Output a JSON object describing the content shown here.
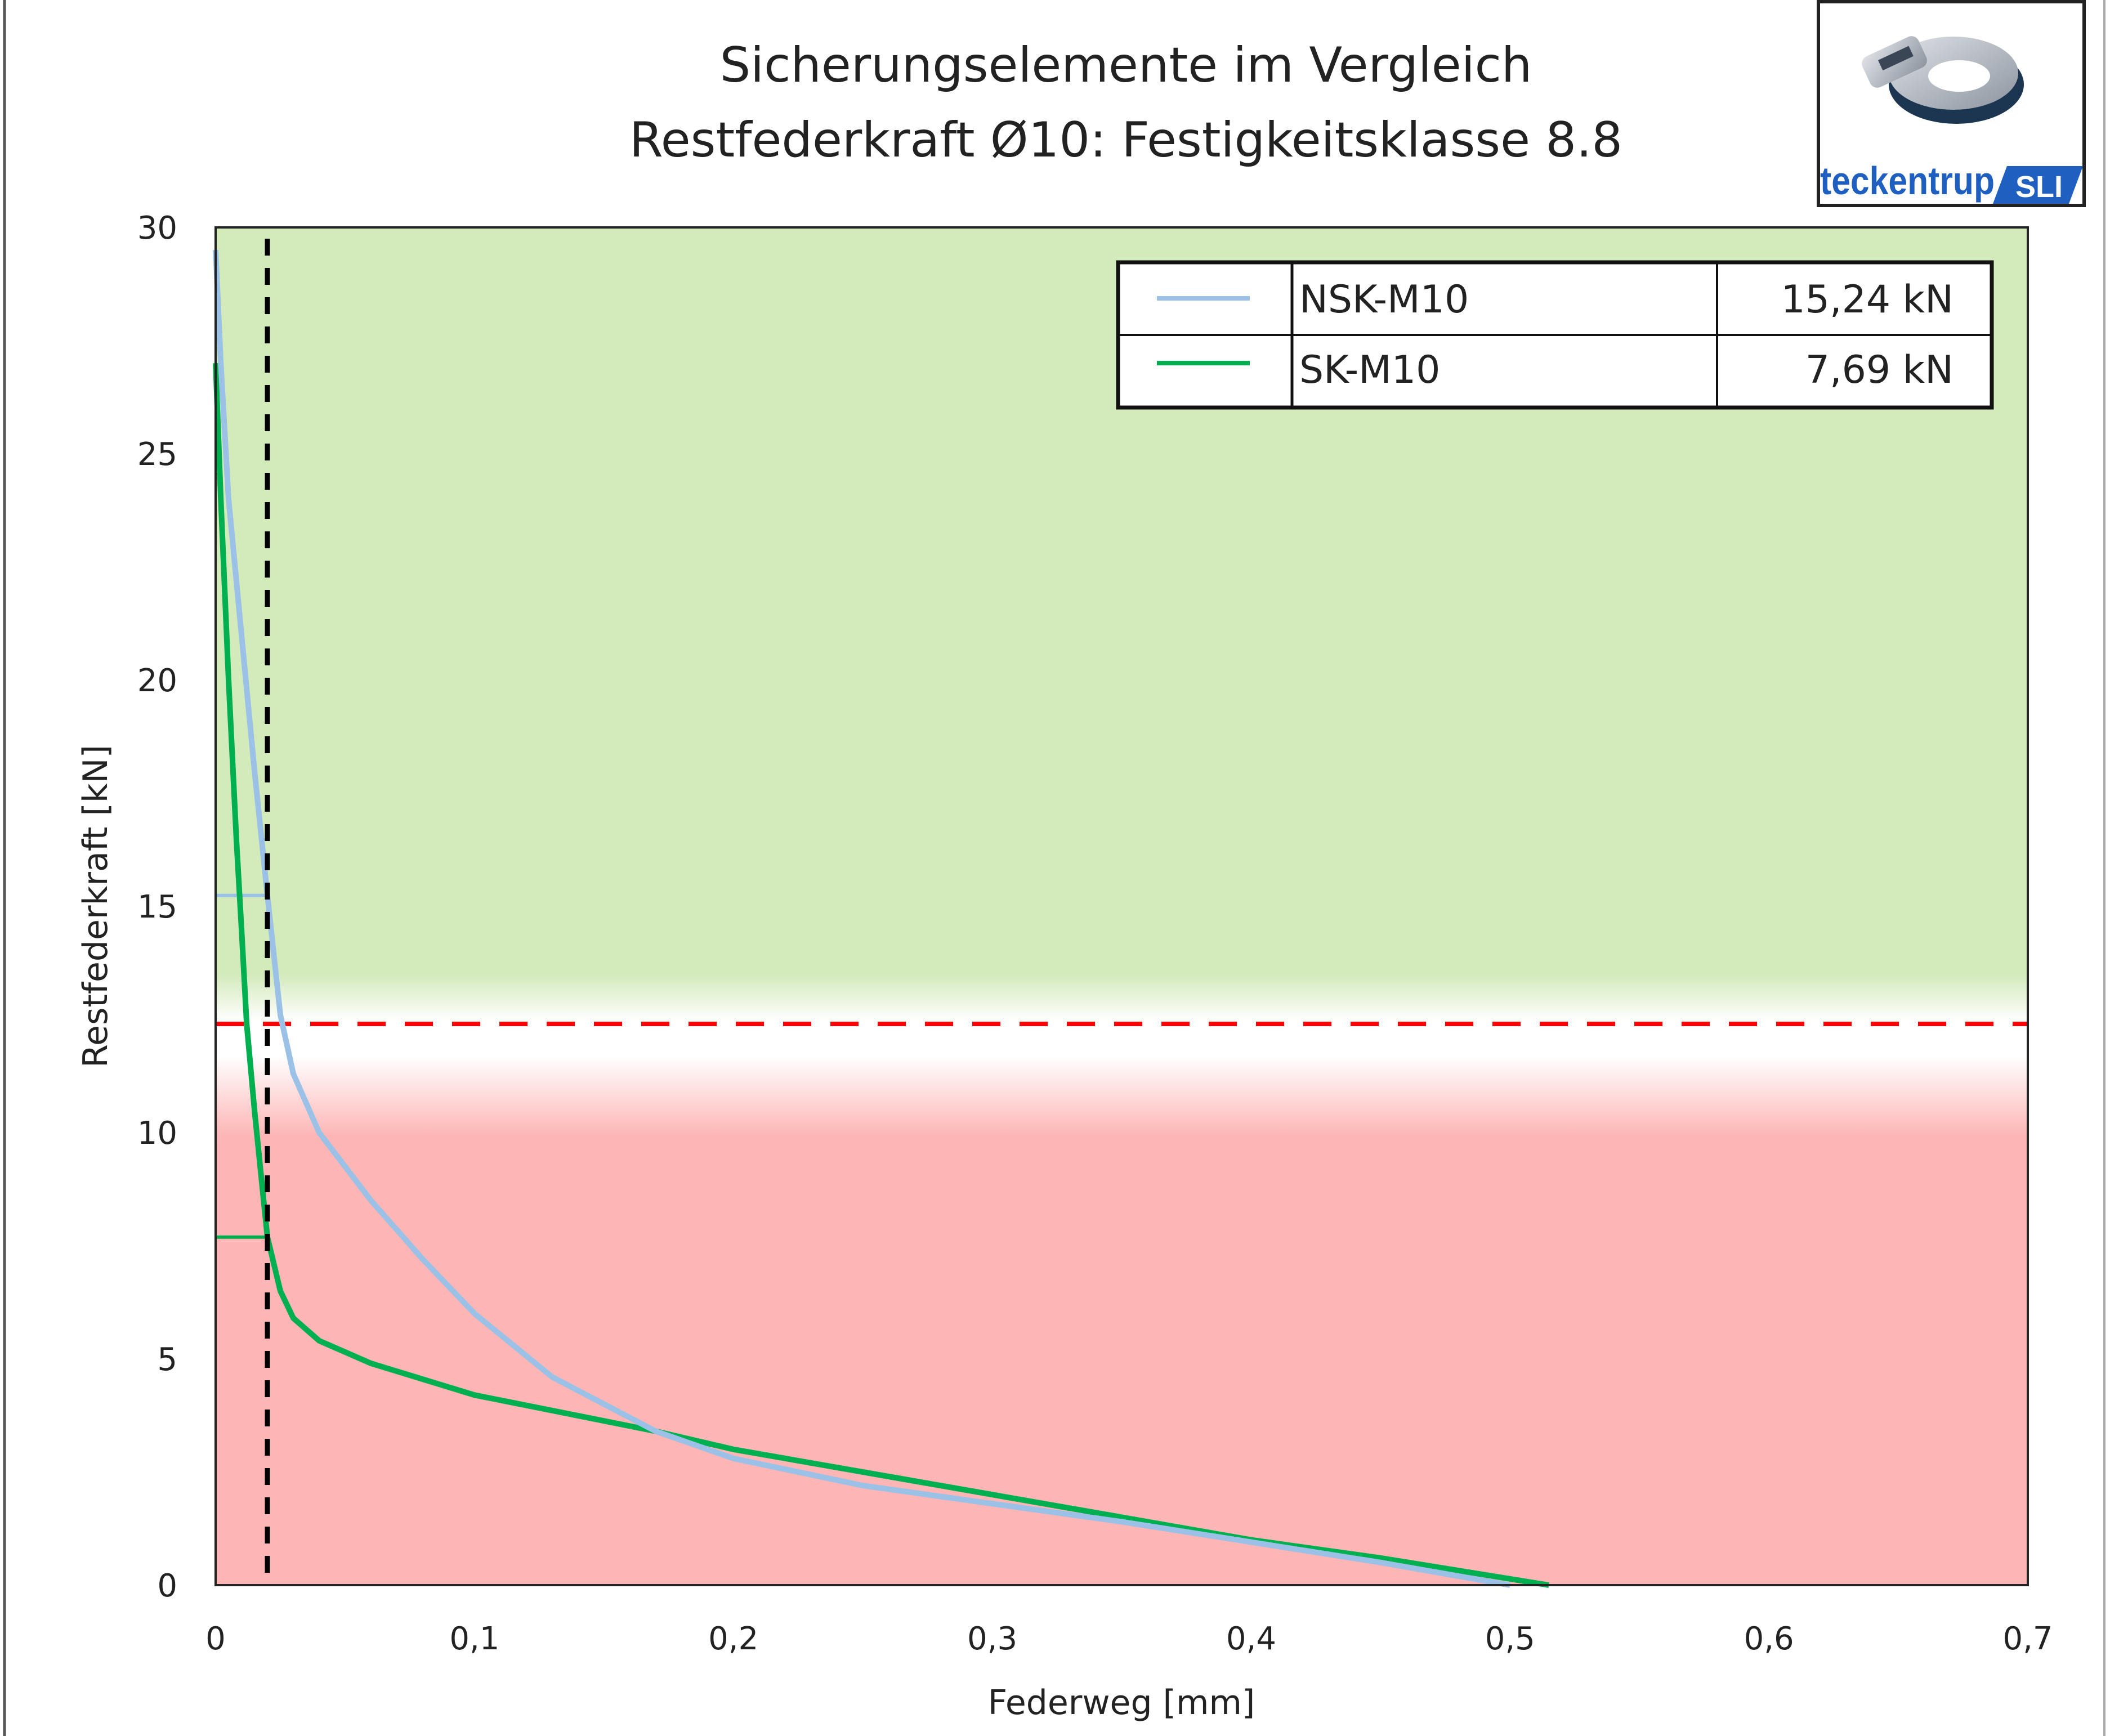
{
  "chart_data": {
    "type": "line",
    "title": "Sicherungselemente im Vergleich",
    "subtitle": "Restfederkraft Ø10: Festigkeitsklasse 8.8",
    "xlabel": "Federweg [mm]",
    "ylabel": "Restfederkraft [kN]",
    "xlim": [
      0,
      0.7
    ],
    "ylim": [
      0,
      30
    ],
    "x_ticks": [
      "0",
      "0,1",
      "0,2",
      "0,3",
      "0,4",
      "0,5",
      "0,6",
      "0,7"
    ],
    "y_ticks": [
      "0",
      "5",
      "10",
      "15",
      "20",
      "25",
      "30"
    ],
    "grid": false,
    "threshold_kN": 12.4,
    "reference_travel_mm": 0.02,
    "zones": {
      "above_color": "#d3eabb",
      "below_color": "#fdb5b5",
      "threshold_color": "#ff0000"
    },
    "legend": {
      "placement": "top-right",
      "entries": [
        {
          "name": "NSK-M10",
          "value": "15,24 kN",
          "color": "#9bc2e6"
        },
        {
          "name": "SK-M10",
          "value": "7,69 kN",
          "color": "#00b050"
        }
      ]
    },
    "series": [
      {
        "name": "NSK-M10",
        "color": "#9bc2e6",
        "marker_value": 15.24,
        "x": [
          0,
          0.002,
          0.005,
          0.01,
          0.015,
          0.02,
          0.025,
          0.03,
          0.04,
          0.06,
          0.08,
          0.1,
          0.13,
          0.17,
          0.2,
          0.25,
          0.3,
          0.35,
          0.4,
          0.45,
          0.5
        ],
        "y": [
          29.5,
          27,
          24,
          21,
          18,
          15.24,
          12.6,
          11.3,
          10,
          8.5,
          7.2,
          6,
          4.6,
          3.4,
          2.8,
          2.2,
          1.8,
          1.4,
          0.95,
          0.5,
          0
        ]
      },
      {
        "name": "SK-M10",
        "color": "#00b050",
        "marker_value": 7.69,
        "x": [
          0,
          0.002,
          0.005,
          0.008,
          0.01,
          0.012,
          0.015,
          0.018,
          0.02,
          0.025,
          0.03,
          0.04,
          0.06,
          0.1,
          0.17,
          0.2,
          0.3,
          0.4,
          0.45,
          0.515
        ],
        "y": [
          27,
          24,
          20,
          16.5,
          14.5,
          12.4,
          10.5,
          8.8,
          7.69,
          6.5,
          5.9,
          5.4,
          4.9,
          4.2,
          3.4,
          3.0,
          2.0,
          1.0,
          0.6,
          0
        ]
      }
    ]
  },
  "logo": {
    "text": "teckentrup",
    "badge": "SLI",
    "color": "#1f5fbf"
  }
}
